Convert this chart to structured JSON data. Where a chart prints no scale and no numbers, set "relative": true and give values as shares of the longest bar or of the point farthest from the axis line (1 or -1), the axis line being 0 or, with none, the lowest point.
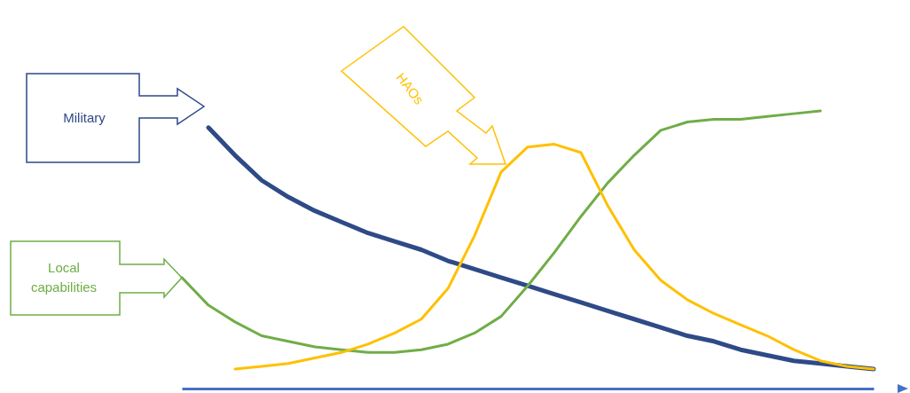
{
  "chart_data": {
    "type": "line",
    "relative": true,
    "line_style": "solid",
    "categories": [
      null,
      null,
      null,
      null,
      null,
      null,
      null,
      null,
      null,
      null,
      null,
      null,
      null,
      null,
      null,
      null,
      null,
      null,
      null,
      null,
      null,
      null,
      null,
      null,
      null,
      null,
      null
    ],
    "series": [
      {
        "name": "Military",
        "color": "#2e4a87",
        "values": [
          null,
          0.94,
          0.84,
          0.75,
          0.69,
          0.64,
          0.6,
          0.56,
          0.53,
          0.5,
          0.46,
          0.43,
          0.4,
          0.37,
          0.34,
          0.31,
          0.28,
          0.25,
          0.22,
          0.19,
          0.17,
          0.14,
          0.12,
          0.1,
          0.09,
          0.08,
          0.07
        ]
      },
      {
        "name": "Local capabilities",
        "color": "#70ad47",
        "values": [
          0.4,
          0.3,
          0.24,
          0.19,
          0.17,
          0.15,
          0.14,
          0.13,
          0.13,
          0.14,
          0.16,
          0.2,
          0.26,
          0.37,
          0.49,
          0.62,
          0.74,
          0.84,
          0.93,
          0.96,
          0.97,
          0.97,
          0.98,
          0.99,
          1.0,
          null,
          null
        ]
      },
      {
        "name": "HAOs",
        "color": "#ffc000",
        "values": [
          null,
          null,
          0.07,
          0.08,
          0.09,
          0.11,
          0.13,
          0.16,
          0.2,
          0.25,
          0.36,
          0.55,
          0.78,
          0.87,
          0.88,
          0.85,
          0.66,
          0.5,
          0.39,
          0.32,
          0.27,
          0.23,
          0.19,
          0.14,
          0.1,
          0.08,
          0.07
        ]
      }
    ]
  }
}
